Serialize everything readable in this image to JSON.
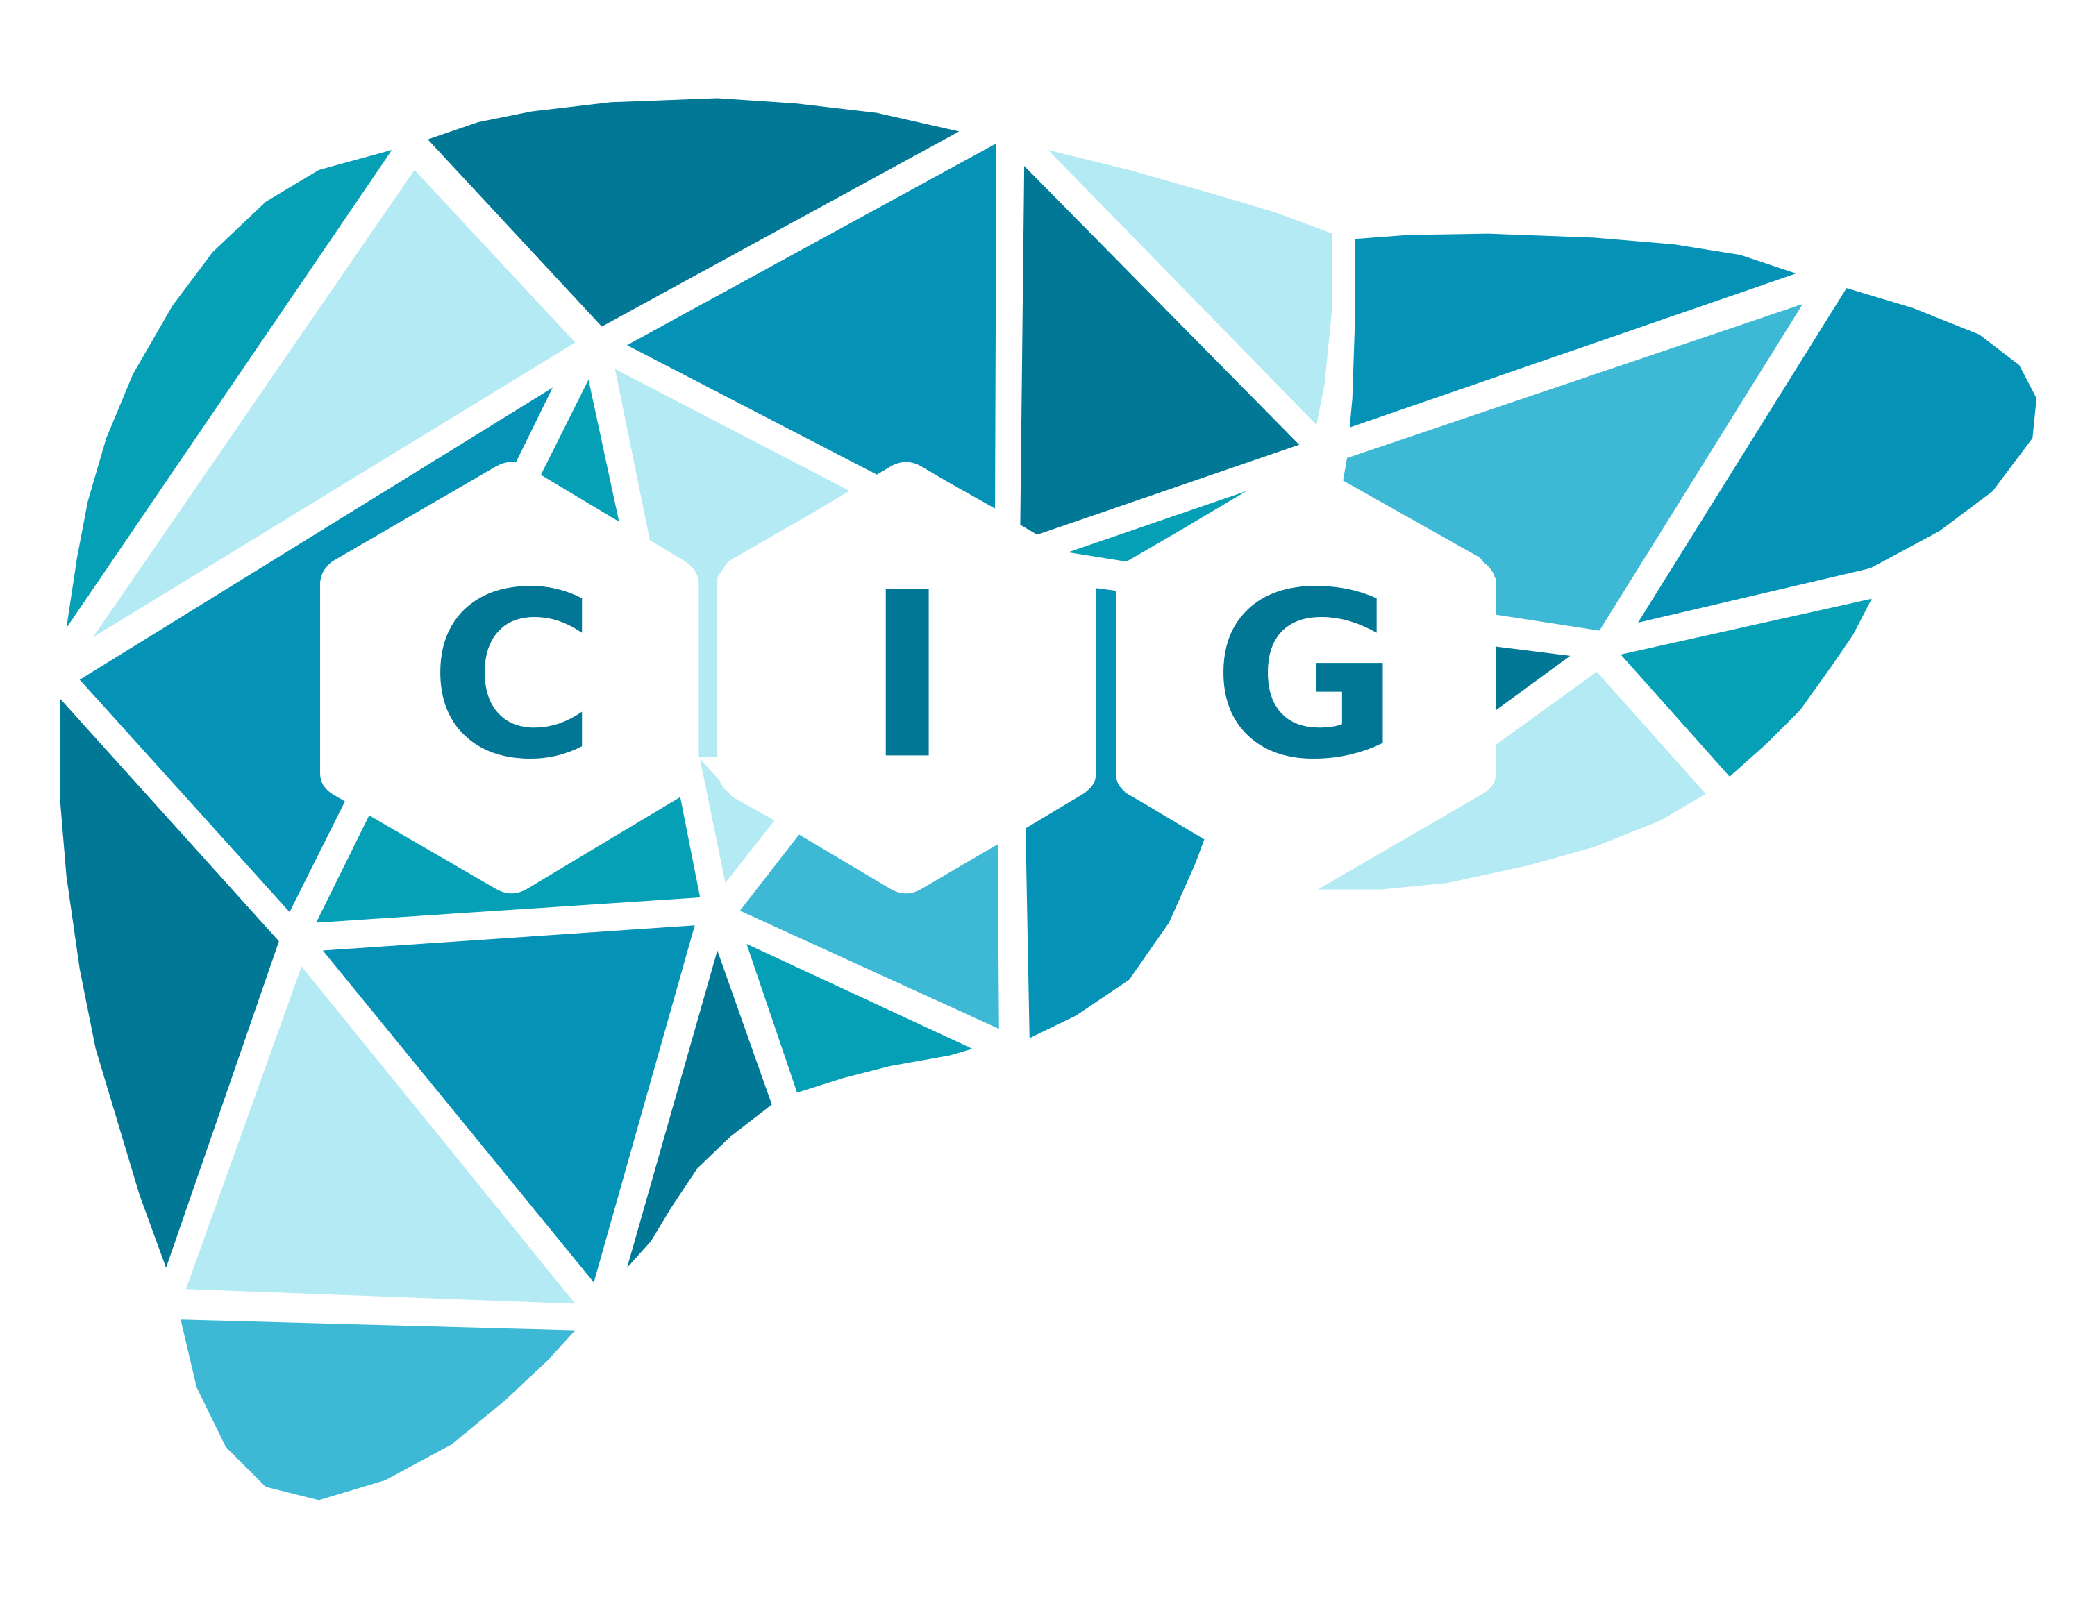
{
  "logo": {
    "letters": [
      "C",
      "I",
      "G"
    ],
    "shape": "liver-icon",
    "colors": {
      "dark": "#027897",
      "medium": "#0492b6",
      "teal": "#05a0b5",
      "light_blue": "#3eb9d5",
      "pale": "#b4eaf3",
      "hex_fill": "#ffffff",
      "letter": "#017795"
    }
  }
}
